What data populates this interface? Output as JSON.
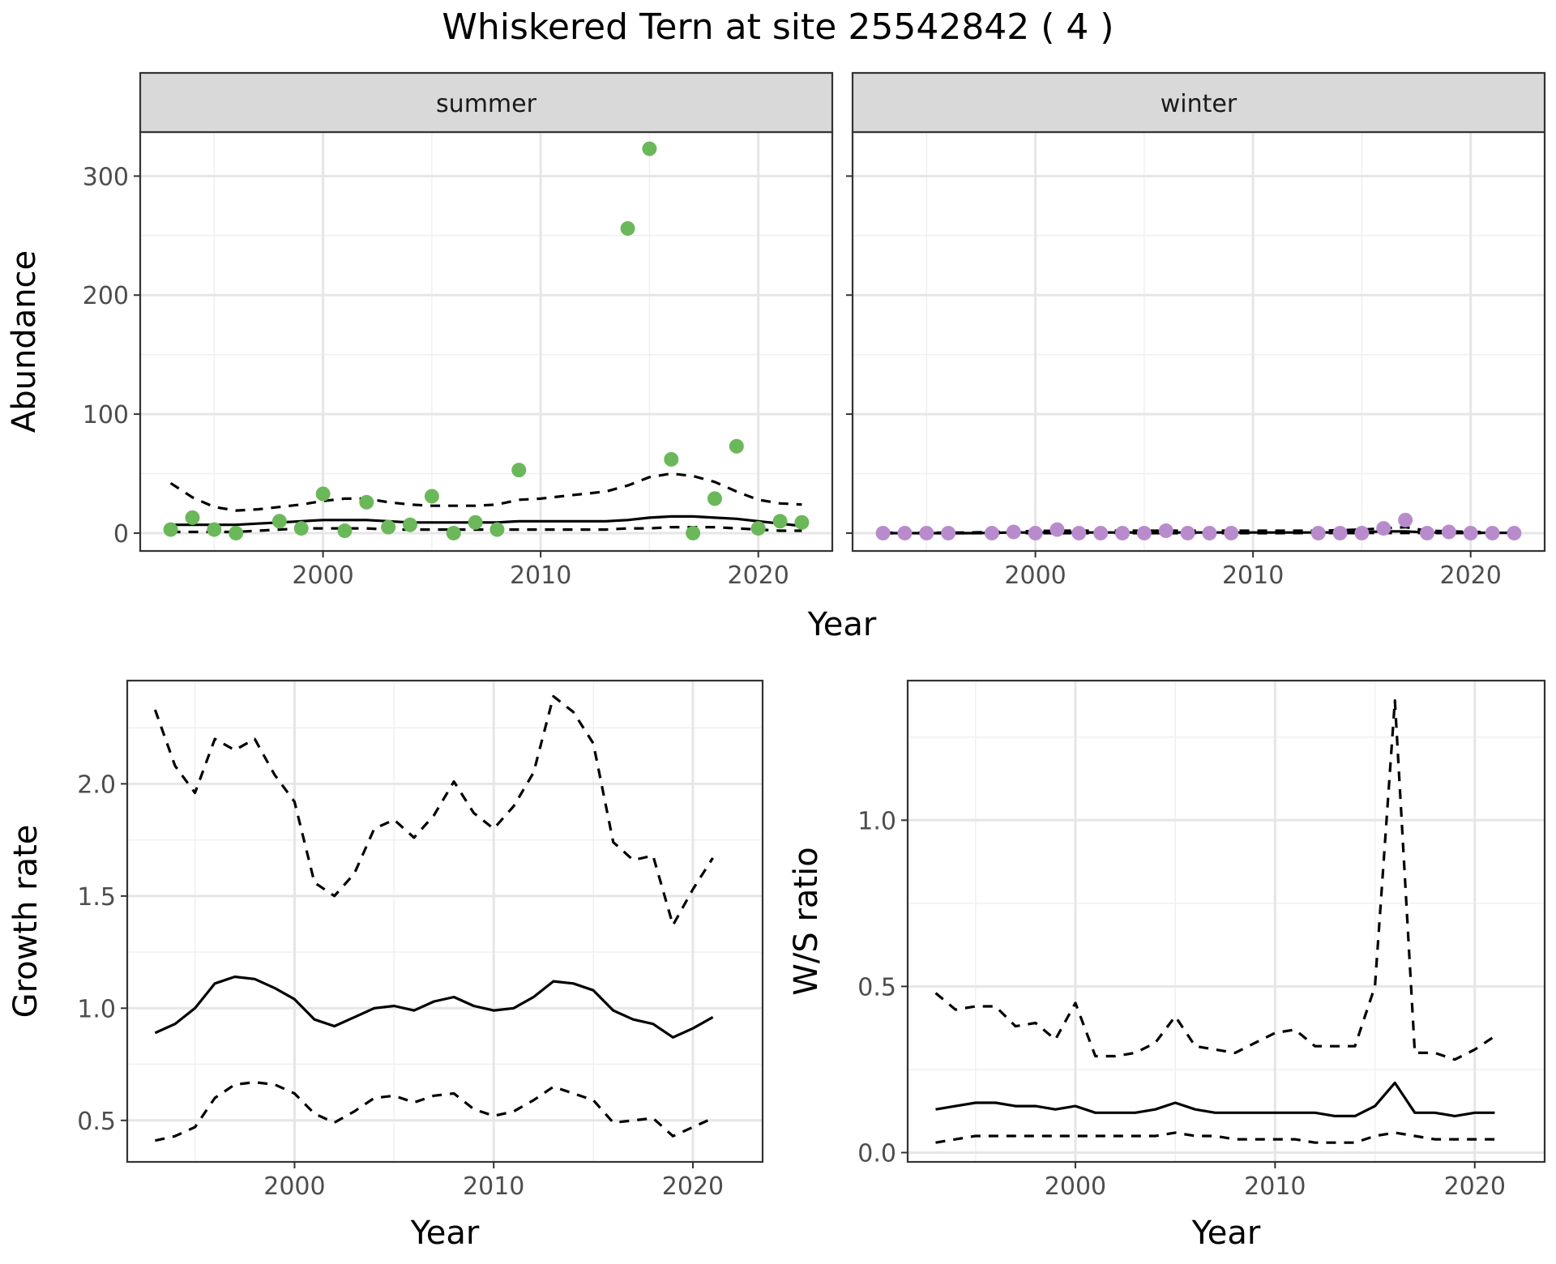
{
  "title": "Whiskered Tern at site 25542842 ( 4 )",
  "chart_data": [
    {
      "type": "scatter",
      "panel": "summer",
      "strip_label": "summer",
      "xlabel": "Year",
      "ylabel": "Abundance",
      "xlim": [
        1991.6,
        2023.4
      ],
      "ylim": [
        -15,
        337
      ],
      "x_ticks": [
        2000,
        2010,
        2020
      ],
      "y_ticks": [
        0,
        100,
        200,
        300
      ],
      "grid": true,
      "point_color": "#6bb85a",
      "points": [
        [
          1993,
          3
        ],
        [
          1994,
          13
        ],
        [
          1995,
          3
        ],
        [
          1996,
          0
        ],
        [
          1998,
          10
        ],
        [
          1999,
          4
        ],
        [
          2000,
          33
        ],
        [
          2001,
          2
        ],
        [
          2002,
          26
        ],
        [
          2003,
          5
        ],
        [
          2004,
          7
        ],
        [
          2005,
          31
        ],
        [
          2006,
          0
        ],
        [
          2007,
          9
        ],
        [
          2008,
          3
        ],
        [
          2009,
          53
        ],
        [
          2014,
          256
        ],
        [
          2015,
          323
        ],
        [
          2016,
          62
        ],
        [
          2017,
          0
        ],
        [
          2018,
          29
        ],
        [
          2019,
          73
        ],
        [
          2020,
          4
        ],
        [
          2021,
          10
        ],
        [
          2022,
          9
        ]
      ],
      "lines": [
        {
          "style": "solid",
          "x": [
            1993,
            1994,
            1995,
            1996,
            1997,
            1998,
            1999,
            2000,
            2001,
            2002,
            2003,
            2004,
            2005,
            2006,
            2007,
            2008,
            2009,
            2010,
            2011,
            2012,
            2013,
            2014,
            2015,
            2016,
            2017,
            2018,
            2019,
            2020,
            2021,
            2022
          ],
          "values": [
            7,
            7,
            7,
            7,
            8,
            9,
            10,
            11,
            11,
            11,
            10,
            9,
            9,
            9,
            9,
            9,
            10,
            10,
            10,
            10,
            10,
            11,
            13,
            14,
            14,
            13,
            12,
            10,
            8,
            6
          ]
        },
        {
          "style": "dashed",
          "x": [
            1993,
            1994,
            1995,
            1996,
            1997,
            1998,
            1999,
            2000,
            2001,
            2002,
            2003,
            2004,
            2005,
            2006,
            2007,
            2008,
            2009,
            2010,
            2011,
            2012,
            2013,
            2014,
            2015,
            2016,
            2017,
            2018,
            2019,
            2020,
            2021,
            2022
          ],
          "values": [
            42,
            30,
            22,
            19,
            20,
            22,
            24,
            27,
            29,
            29,
            26,
            24,
            23,
            23,
            23,
            24,
            28,
            29,
            31,
            33,
            35,
            40,
            47,
            50,
            48,
            43,
            35,
            28,
            25,
            24
          ]
        },
        {
          "style": "dashed",
          "x": [
            1993,
            1994,
            1995,
            1996,
            1997,
            1998,
            1999,
            2000,
            2001,
            2002,
            2003,
            2004,
            2005,
            2006,
            2007,
            2008,
            2009,
            2010,
            2011,
            2012,
            2013,
            2014,
            2015,
            2016,
            2017,
            2018,
            2019,
            2020,
            2021,
            2022
          ],
          "values": [
            1,
            1,
            1,
            1,
            2,
            3,
            4,
            4,
            4,
            4,
            3,
            3,
            3,
            3,
            3,
            3,
            3,
            3,
            3,
            3,
            3,
            4,
            4,
            5,
            5,
            5,
            4,
            3,
            2,
            2
          ]
        }
      ]
    },
    {
      "type": "scatter",
      "panel": "winter",
      "strip_label": "winter",
      "xlabel": "Year",
      "ylabel": "Abundance",
      "xlim": [
        1991.6,
        2023.4
      ],
      "ylim": [
        -15,
        337
      ],
      "x_ticks": [
        2000,
        2010,
        2020
      ],
      "y_ticks": [
        0,
        100,
        200,
        300
      ],
      "grid": true,
      "point_color": "#b88ccc",
      "points": [
        [
          1993,
          0
        ],
        [
          1994,
          0
        ],
        [
          1995,
          0
        ],
        [
          1996,
          0
        ],
        [
          1998,
          0
        ],
        [
          1999,
          1
        ],
        [
          2000,
          0
        ],
        [
          2001,
          3
        ],
        [
          2002,
          0
        ],
        [
          2003,
          0
        ],
        [
          2004,
          0
        ],
        [
          2005,
          0
        ],
        [
          2006,
          2
        ],
        [
          2007,
          0
        ],
        [
          2008,
          0
        ],
        [
          2009,
          0
        ],
        [
          2013,
          0
        ],
        [
          2014,
          0
        ],
        [
          2015,
          0
        ],
        [
          2016,
          4
        ],
        [
          2017,
          11
        ],
        [
          2018,
          0
        ],
        [
          2019,
          1
        ],
        [
          2020,
          0
        ],
        [
          2021,
          0
        ],
        [
          2022,
          0
        ]
      ],
      "lines": [
        {
          "style": "solid",
          "x": [
            1993,
            1995,
            1997,
            1999,
            2001,
            2003,
            2005,
            2007,
            2009,
            2011,
            2013,
            2015,
            2016,
            2017,
            2018,
            2020,
            2022
          ],
          "values": [
            0,
            0,
            0,
            0.5,
            0.5,
            0.5,
            0.5,
            0.5,
            0.5,
            0.5,
            0.5,
            0.8,
            1.5,
            1.5,
            0.5,
            0.3,
            0.2
          ]
        },
        {
          "style": "dashed",
          "x": [
            1993,
            1995,
            1997,
            1999,
            2001,
            2003,
            2005,
            2007,
            2009,
            2011,
            2013,
            2015,
            2016,
            2017,
            2018,
            2020,
            2022
          ],
          "values": [
            0.3,
            0.3,
            0.5,
            1.5,
            2,
            2,
            2,
            2,
            2,
            2,
            2,
            3,
            4,
            5,
            2,
            1,
            0.5
          ]
        },
        {
          "style": "dashed",
          "x": [
            1993,
            2000,
            2010,
            2016,
            2017,
            2022
          ],
          "values": [
            0,
            0,
            0,
            0.1,
            0.1,
            0
          ]
        }
      ]
    },
    {
      "type": "line",
      "panel": "growth",
      "xlabel": "Year",
      "ylabel": "Growth rate",
      "xlim": [
        1991.6,
        2023.5
      ],
      "ylim": [
        0.315,
        2.46
      ],
      "x_ticks": [
        2000,
        2010,
        2020
      ],
      "y_ticks": [
        0.5,
        1.0,
        1.5,
        2.0
      ],
      "grid": true,
      "series": [
        {
          "style": "solid",
          "x": [
            1993,
            1994,
            1995,
            1996,
            1997,
            1998,
            1999,
            2000,
            2001,
            2002,
            2003,
            2004,
            2005,
            2006,
            2007,
            2008,
            2009,
            2010,
            2011,
            2012,
            2013,
            2014,
            2015,
            2016,
            2017,
            2018,
            2019,
            2020,
            2021
          ],
          "values": [
            0.89,
            0.93,
            1.0,
            1.11,
            1.14,
            1.13,
            1.09,
            1.04,
            0.95,
            0.92,
            0.96,
            1.0,
            1.01,
            0.99,
            1.03,
            1.05,
            1.01,
            0.99,
            1.0,
            1.05,
            1.12,
            1.11,
            1.08,
            0.99,
            0.95,
            0.93,
            0.87,
            0.91,
            0.96
          ]
        },
        {
          "style": "dashed",
          "x": [
            1993,
            1994,
            1995,
            1996,
            1997,
            1998,
            1999,
            2000,
            2001,
            2002,
            2003,
            2004,
            2005,
            2006,
            2007,
            2008,
            2009,
            2010,
            2011,
            2012,
            2013,
            2014,
            2015,
            2016,
            2017,
            2018,
            2019,
            2020,
            2021
          ],
          "values": [
            2.33,
            2.08,
            1.96,
            2.2,
            2.15,
            2.2,
            2.04,
            1.92,
            1.56,
            1.5,
            1.6,
            1.8,
            1.84,
            1.76,
            1.86,
            2.01,
            1.87,
            1.8,
            1.9,
            2.05,
            2.39,
            2.32,
            2.18,
            1.74,
            1.66,
            1.68,
            1.37,
            1.53,
            1.67
          ]
        },
        {
          "style": "dashed",
          "x": [
            1993,
            1994,
            1995,
            1996,
            1997,
            1998,
            1999,
            2000,
            2001,
            2002,
            2003,
            2004,
            2005,
            2006,
            2007,
            2008,
            2009,
            2010,
            2011,
            2012,
            2013,
            2014,
            2015,
            2016,
            2017,
            2018,
            2019,
            2020,
            2021
          ],
          "values": [
            0.41,
            0.43,
            0.47,
            0.6,
            0.66,
            0.67,
            0.66,
            0.62,
            0.53,
            0.49,
            0.54,
            0.6,
            0.61,
            0.58,
            0.61,
            0.62,
            0.55,
            0.52,
            0.54,
            0.59,
            0.65,
            0.62,
            0.59,
            0.49,
            0.5,
            0.51,
            0.43,
            0.47,
            0.51
          ]
        }
      ]
    },
    {
      "type": "line",
      "panel": "ratio",
      "xlabel": "Year",
      "ylabel": "W/S ratio",
      "xlim": [
        1991.6,
        2023.5
      ],
      "ylim": [
        -0.028,
        1.42
      ],
      "x_ticks": [
        2000,
        2010,
        2020
      ],
      "y_ticks": [
        0.0,
        0.5,
        1.0
      ],
      "grid": true,
      "series": [
        {
          "style": "solid",
          "x": [
            1993,
            1994,
            1995,
            1996,
            1997,
            1998,
            1999,
            2000,
            2001,
            2002,
            2003,
            2004,
            2005,
            2006,
            2007,
            2008,
            2009,
            2010,
            2011,
            2012,
            2013,
            2014,
            2015,
            2016,
            2017,
            2018,
            2019,
            2020,
            2021
          ],
          "values": [
            0.13,
            0.14,
            0.15,
            0.15,
            0.14,
            0.14,
            0.13,
            0.14,
            0.12,
            0.12,
            0.12,
            0.13,
            0.15,
            0.13,
            0.12,
            0.12,
            0.12,
            0.12,
            0.12,
            0.12,
            0.11,
            0.11,
            0.14,
            0.21,
            0.12,
            0.12,
            0.11,
            0.12,
            0.12
          ]
        },
        {
          "style": "dashed",
          "x": [
            1993,
            1994,
            1995,
            1996,
            1997,
            1998,
            1999,
            2000,
            2001,
            2002,
            2003,
            2004,
            2005,
            2006,
            2007,
            2008,
            2009,
            2010,
            2011,
            2012,
            2013,
            2014,
            2015,
            2016,
            2017,
            2018,
            2019,
            2020,
            2021
          ],
          "values": [
            0.48,
            0.43,
            0.44,
            0.44,
            0.38,
            0.39,
            0.34,
            0.45,
            0.29,
            0.29,
            0.3,
            0.33,
            0.41,
            0.32,
            0.31,
            0.3,
            0.33,
            0.36,
            0.37,
            0.32,
            0.32,
            0.32,
            0.5,
            1.36,
            0.3,
            0.3,
            0.28,
            0.31,
            0.35
          ]
        },
        {
          "style": "dashed",
          "x": [
            1993,
            1994,
            1995,
            1996,
            1997,
            1998,
            1999,
            2000,
            2001,
            2002,
            2003,
            2004,
            2005,
            2006,
            2007,
            2008,
            2009,
            2010,
            2011,
            2012,
            2013,
            2014,
            2015,
            2016,
            2017,
            2018,
            2019,
            2020,
            2021
          ],
          "values": [
            0.03,
            0.04,
            0.05,
            0.05,
            0.05,
            0.05,
            0.05,
            0.05,
            0.05,
            0.05,
            0.05,
            0.05,
            0.06,
            0.05,
            0.05,
            0.04,
            0.04,
            0.04,
            0.04,
            0.03,
            0.03,
            0.03,
            0.05,
            0.06,
            0.05,
            0.04,
            0.04,
            0.04,
            0.04
          ]
        }
      ]
    }
  ]
}
